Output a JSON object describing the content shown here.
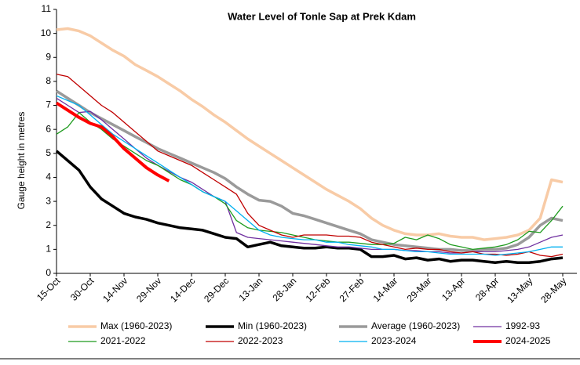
{
  "chart_data": {
    "type": "line",
    "title": "Water Level of Tonle Sap at Prek Kdam",
    "y_label": "Gauge height in metres",
    "categories": [
      "15-Oct",
      null,
      null,
      "30-Oct",
      null,
      null,
      "14-Nov",
      null,
      null,
      "29-Nov",
      null,
      null,
      "14-Dec",
      null,
      null,
      "29-Dec",
      null,
      null,
      "13-Jan",
      null,
      null,
      "28-Jan",
      null,
      null,
      "12-Feb",
      null,
      null,
      "27-Feb",
      null,
      null,
      "14-Mar",
      null,
      null,
      "29-Mar",
      null,
      null,
      "13-Apr",
      null,
      null,
      "28-Apr",
      null,
      null,
      "13-May",
      null,
      null,
      "28-May"
    ],
    "ylim": [
      0,
      11
    ],
    "yticks": [
      0,
      1,
      2,
      3,
      4,
      5,
      6,
      7,
      8,
      9,
      10,
      11
    ],
    "grid": false,
    "legend": "bottom",
    "series": [
      {
        "name": "Max (1960-2023)",
        "color": "#f8cba6",
        "line_width": 3.5,
        "values": [
          10.15,
          10.2,
          10.1,
          9.9,
          9.6,
          9.3,
          9.05,
          8.7,
          8.45,
          8.2,
          7.9,
          7.6,
          7.25,
          6.95,
          6.6,
          6.3,
          5.95,
          5.6,
          5.3,
          5,
          4.7,
          4.4,
          4.1,
          3.8,
          3.5,
          3.25,
          3.0,
          2.7,
          2.3,
          2.0,
          1.8,
          1.65,
          1.6,
          1.6,
          1.65,
          1.55,
          1.5,
          1.5,
          1.4,
          1.45,
          1.5,
          1.6,
          1.8,
          2.3,
          3.9,
          3.8
        ]
      },
      {
        "name": "Min (1960-2023)",
        "color": "#000000",
        "line_width": 3.5,
        "values": [
          5.1,
          4.7,
          4.3,
          3.6,
          3.1,
          2.8,
          2.5,
          2.35,
          2.25,
          2.1,
          2.0,
          1.9,
          1.85,
          1.8,
          1.65,
          1.5,
          1.45,
          1.1,
          1.2,
          1.3,
          1.15,
          1.1,
          1.05,
          1.05,
          1.1,
          1.05,
          1.05,
          1.0,
          0.7,
          0.7,
          0.75,
          0.6,
          0.65,
          0.55,
          0.6,
          0.5,
          0.55,
          0.55,
          0.5,
          0.45,
          0.5,
          0.45,
          0.45,
          0.5,
          0.6,
          0.65
        ]
      },
      {
        "name": "Average (1960-2023)",
        "color": "#9a9a9a",
        "line_width": 3.5,
        "values": [
          7.6,
          7.3,
          7.0,
          6.7,
          6.45,
          6.2,
          5.95,
          5.7,
          5.45,
          5.2,
          5.0,
          4.8,
          4.6,
          4.4,
          4.2,
          3.95,
          3.6,
          3.3,
          3.05,
          3.0,
          2.8,
          2.5,
          2.4,
          2.25,
          2.1,
          1.95,
          1.8,
          1.65,
          1.4,
          1.3,
          1.2,
          1.15,
          1.1,
          1.05,
          1.0,
          1.0,
          0.95,
          0.95,
          1.0,
          1.0,
          1.05,
          1.2,
          1.5,
          2.0,
          2.3,
          2.2
        ]
      },
      {
        "name": "1992-93",
        "color": "#7030a0",
        "line_width": 1.3,
        "values": [
          7.3,
          7.0,
          6.7,
          6.75,
          6.4,
          6.0,
          5.6,
          5.2,
          4.8,
          4.5,
          4.25,
          4.0,
          3.8,
          3.5,
          3.2,
          3.0,
          1.7,
          1.5,
          1.45,
          1.4,
          1.35,
          1.3,
          1.25,
          1.2,
          1.15,
          1.1,
          1.1,
          1.05,
          1.0,
          1.0,
          1.0,
          0.95,
          0.95,
          0.9,
          0.9,
          0.85,
          0.85,
          0.9,
          0.9,
          0.9,
          0.95,
          1.0,
          1.1,
          1.3,
          1.5,
          1.6
        ]
      },
      {
        "name": "2021-2022",
        "color": "#1e9b1e",
        "line_width": 1.3,
        "values": [
          5.8,
          6.1,
          6.7,
          6.3,
          6.0,
          5.6,
          5.3,
          5.0,
          4.7,
          4.5,
          4.2,
          3.9,
          3.7,
          3.4,
          3.2,
          2.9,
          2.2,
          1.9,
          1.8,
          1.75,
          1.7,
          1.6,
          1.5,
          1.4,
          1.35,
          1.3,
          1.3,
          1.25,
          1.2,
          1.2,
          1.25,
          1.5,
          1.4,
          1.6,
          1.45,
          1.2,
          1.1,
          1.0,
          1.05,
          1.1,
          1.2,
          1.4,
          1.75,
          1.7,
          2.2,
          2.8
        ]
      },
      {
        "name": "2022-2023",
        "color": "#c00000",
        "line_width": 1.3,
        "values": [
          8.3,
          8.2,
          7.8,
          7.4,
          7.0,
          6.7,
          6.3,
          5.9,
          5.5,
          5.1,
          4.9,
          4.7,
          4.5,
          4.2,
          3.9,
          3.6,
          3.3,
          2.5,
          2.0,
          1.8,
          1.6,
          1.5,
          1.6,
          1.6,
          1.6,
          1.55,
          1.55,
          1.5,
          1.3,
          1.2,
          1.1,
          1.0,
          1.05,
          1.0,
          1.0,
          0.9,
          0.85,
          0.9,
          0.8,
          0.8,
          0.75,
          0.8,
          0.9,
          0.75,
          0.7,
          0.8
        ]
      },
      {
        "name": "2023-2024",
        "color": "#00b0f0",
        "line_width": 1.3,
        "values": [
          7.4,
          7.2,
          7.0,
          6.6,
          6.2,
          5.8,
          5.5,
          5.2,
          4.9,
          4.6,
          4.3,
          4.0,
          3.7,
          3.4,
          3.2,
          3.0,
          2.6,
          2.2,
          1.8,
          1.6,
          1.5,
          1.45,
          1.4,
          1.4,
          1.3,
          1.3,
          1.2,
          1.15,
          1.1,
          1.0,
          1.0,
          0.95,
          0.9,
          0.9,
          0.85,
          0.8,
          0.8,
          0.8,
          0.8,
          0.75,
          0.8,
          0.85,
          0.9,
          1.0,
          1.1,
          1.1
        ]
      },
      {
        "name": "2024-2025",
        "color": "#ff0000",
        "line_width": 4,
        "values": [
          7.1,
          6.8,
          6.5,
          6.25,
          6.1,
          5.7,
          5.2,
          4.8,
          4.4,
          4.1,
          3.85,
          null,
          null,
          null,
          null,
          null,
          null,
          null,
          null,
          null,
          null,
          null,
          null,
          null,
          null,
          null,
          null,
          null,
          null,
          null,
          null,
          null,
          null,
          null,
          null,
          null,
          null,
          null,
          null,
          null,
          null,
          null,
          null,
          null,
          null,
          null
        ]
      }
    ]
  }
}
